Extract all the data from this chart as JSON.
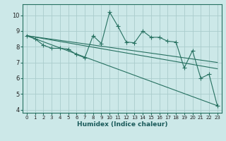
{
  "title": "",
  "xlabel": "Humidex (Indice chaleur)",
  "bg_color": "#cce8e8",
  "line_color": "#267060",
  "grid_color": "#aacccc",
  "xlim": [
    -0.5,
    23.5
  ],
  "ylim": [
    3.8,
    10.7
  ],
  "xticks": [
    0,
    1,
    2,
    3,
    4,
    5,
    6,
    7,
    8,
    9,
    10,
    11,
    12,
    13,
    14,
    15,
    16,
    17,
    18,
    19,
    20,
    21,
    22,
    23
  ],
  "yticks": [
    4,
    5,
    6,
    7,
    8,
    9,
    10
  ],
  "series_main": {
    "x": [
      0,
      1,
      2,
      3,
      4,
      5,
      6,
      7,
      8,
      9,
      10,
      11,
      12,
      13,
      14,
      15,
      16,
      17,
      18,
      19,
      20,
      21,
      22,
      23
    ],
    "y": [
      8.7,
      8.5,
      8.1,
      7.9,
      7.9,
      7.85,
      7.5,
      7.3,
      8.7,
      8.2,
      10.2,
      9.3,
      8.3,
      8.25,
      9.0,
      8.6,
      8.6,
      8.35,
      8.3,
      6.65,
      7.75,
      6.0,
      6.25,
      4.25
    ]
  },
  "linear_lines": [
    {
      "x": [
        0,
        23
      ],
      "y": [
        8.7,
        7.0
      ]
    },
    {
      "x": [
        0,
        23
      ],
      "y": [
        8.7,
        6.6
      ]
    },
    {
      "x": [
        0,
        23
      ],
      "y": [
        8.7,
        4.25
      ]
    }
  ]
}
